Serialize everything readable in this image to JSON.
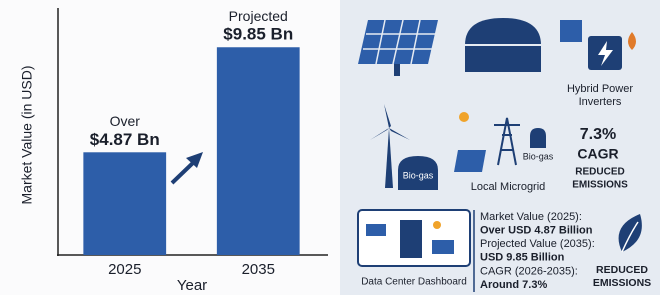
{
  "chart_data": {
    "type": "bar",
    "x_label": "Year",
    "y_label": "Market Value (in USD)",
    "categories": [
      "2025",
      "2035"
    ],
    "values": [
      4.87,
      9.85
    ],
    "value_labels": [
      "$4.87 Bn",
      "$9.85 Bn"
    ],
    "annotations": [
      "Over",
      "Projected"
    ],
    "color": "#2d5ea9",
    "ylim": [
      0,
      11
    ]
  },
  "panel": {
    "icons": {
      "hybrid_inverters": [
        "Hybrid Power",
        "Inverters"
      ],
      "biogas_wind": "Bio-gas",
      "biogas_microgrid": "Bio-gas",
      "microgrid": "Local Microgrid",
      "cagr_value": "7.3%",
      "cagr_label": "CAGR",
      "reduced_emissions_1": [
        "REDUCED",
        "EMISSIONS"
      ],
      "dashboard": "Data Center Dashboard",
      "reduced_emissions_2": [
        "REDUCED",
        "EMISSIONS"
      ]
    },
    "summary": [
      "Market Value (2025):",
      "Over USD 4.87 Billion",
      "Projected Value (2035):",
      "USD 9.85 Billion",
      "CAGR (2026-2035):",
      "Around 7.3%"
    ]
  }
}
